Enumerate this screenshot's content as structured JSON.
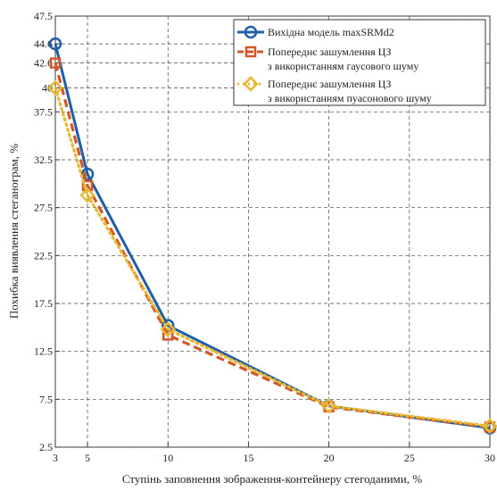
{
  "chart_data": {
    "type": "line",
    "title": "",
    "xlabel": "Ступінь заповнення зображення-контейнеру стегоданими, %",
    "ylabel": "Похибка виявлення стеганограм, %",
    "xlim": [
      3,
      30
    ],
    "ylim": [
      2.5,
      47.5
    ],
    "x_ticks": [
      "3",
      "5",
      "10",
      "15",
      "20",
      "25",
      "30"
    ],
    "y_ticks": [
      "2.5",
      "7.5",
      "12.5",
      "17.5",
      "22.5",
      "27.5",
      "32.5",
      "37.5",
      "40",
      "42.6",
      "44.6",
      "47.5"
    ],
    "x_tick_values": [
      3,
      5,
      10,
      15,
      20,
      25,
      30
    ],
    "y_tick_values": [
      2.5,
      7.5,
      12.5,
      17.5,
      22.5,
      27.5,
      32.5,
      37.5,
      40,
      42.6,
      44.6,
      47.5
    ],
    "grid": true,
    "legend_position": "top-right",
    "x": [
      3,
      5,
      10,
      20,
      30
    ],
    "series": [
      {
        "name": "Вихідна модель maxSRMd2",
        "values": [
          44.6,
          31.0,
          15.2,
          6.8,
          4.5
        ],
        "color": "#1f5fa8",
        "style": "solid",
        "marker": "circle"
      },
      {
        "name": "Попереднє зашумлення ЦЗ з використанням гаусового шуму",
        "legend_lines": [
          "Попереднє зашумлення ЦЗ",
          "з використанням гаусового шуму"
        ],
        "values": [
          42.6,
          29.8,
          14.2,
          6.7,
          4.6
        ],
        "color": "#d2582a",
        "style": "dashed",
        "marker": "square"
      },
      {
        "name": "Попереднє зашумлення ЦЗ з використанням пуасонового шуму",
        "legend_lines": [
          "Попереднє зашумлення ЦЗ",
          "з використанням пуасонового шуму"
        ],
        "values": [
          40.0,
          28.8,
          14.8,
          6.8,
          4.7
        ],
        "color": "#e8b830",
        "style": "dotted",
        "marker": "diamond"
      }
    ]
  }
}
